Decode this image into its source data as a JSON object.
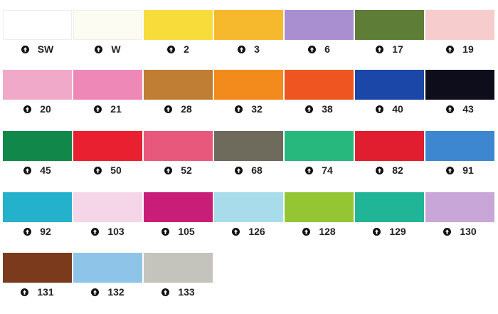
{
  "rows": [
    [
      {
        "label": "SW",
        "color": "#ffffff"
      },
      {
        "label": "W",
        "color": "#fdfcf3"
      },
      {
        "label": "2",
        "color": "#f7dc3a"
      },
      {
        "label": "3",
        "color": "#f6b92e"
      },
      {
        "label": "6",
        "color": "#a98ed0"
      },
      {
        "label": "17",
        "color": "#5e7d36"
      },
      {
        "label": "19",
        "color": "#f6cccc"
      }
    ],
    [
      {
        "label": "20",
        "color": "#f0a9c9"
      },
      {
        "label": "21",
        "color": "#ee88b7"
      },
      {
        "label": "28",
        "color": "#c07d34"
      },
      {
        "label": "32",
        "color": "#f28a1c"
      },
      {
        "label": "38",
        "color": "#ee5520"
      },
      {
        "label": "40",
        "color": "#1a47a8"
      },
      {
        "label": "43",
        "color": "#0d0d1c"
      }
    ],
    [
      {
        "label": "45",
        "color": "#12874a"
      },
      {
        "label": "50",
        "color": "#e82030"
      },
      {
        "label": "52",
        "color": "#e8587c"
      },
      {
        "label": "68",
        "color": "#6e6a5c"
      },
      {
        "label": "74",
        "color": "#27b87e"
      },
      {
        "label": "82",
        "color": "#e01e30"
      },
      {
        "label": "91",
        "color": "#3d86d0"
      }
    ],
    [
      {
        "label": "92",
        "color": "#24b1cb"
      },
      {
        "label": "103",
        "color": "#f5d6e8"
      },
      {
        "label": "105",
        "color": "#c81e78"
      },
      {
        "label": "126",
        "color": "#a8dcea"
      },
      {
        "label": "128",
        "color": "#94c634"
      },
      {
        "label": "129",
        "color": "#21b598"
      },
      {
        "label": "130",
        "color": "#c9a6d8"
      }
    ],
    [
      {
        "label": "131",
        "color": "#7c3a1c"
      },
      {
        "label": "132",
        "color": "#8ec4e8"
      },
      {
        "label": "133",
        "color": "#c4c4bc"
      }
    ]
  ]
}
